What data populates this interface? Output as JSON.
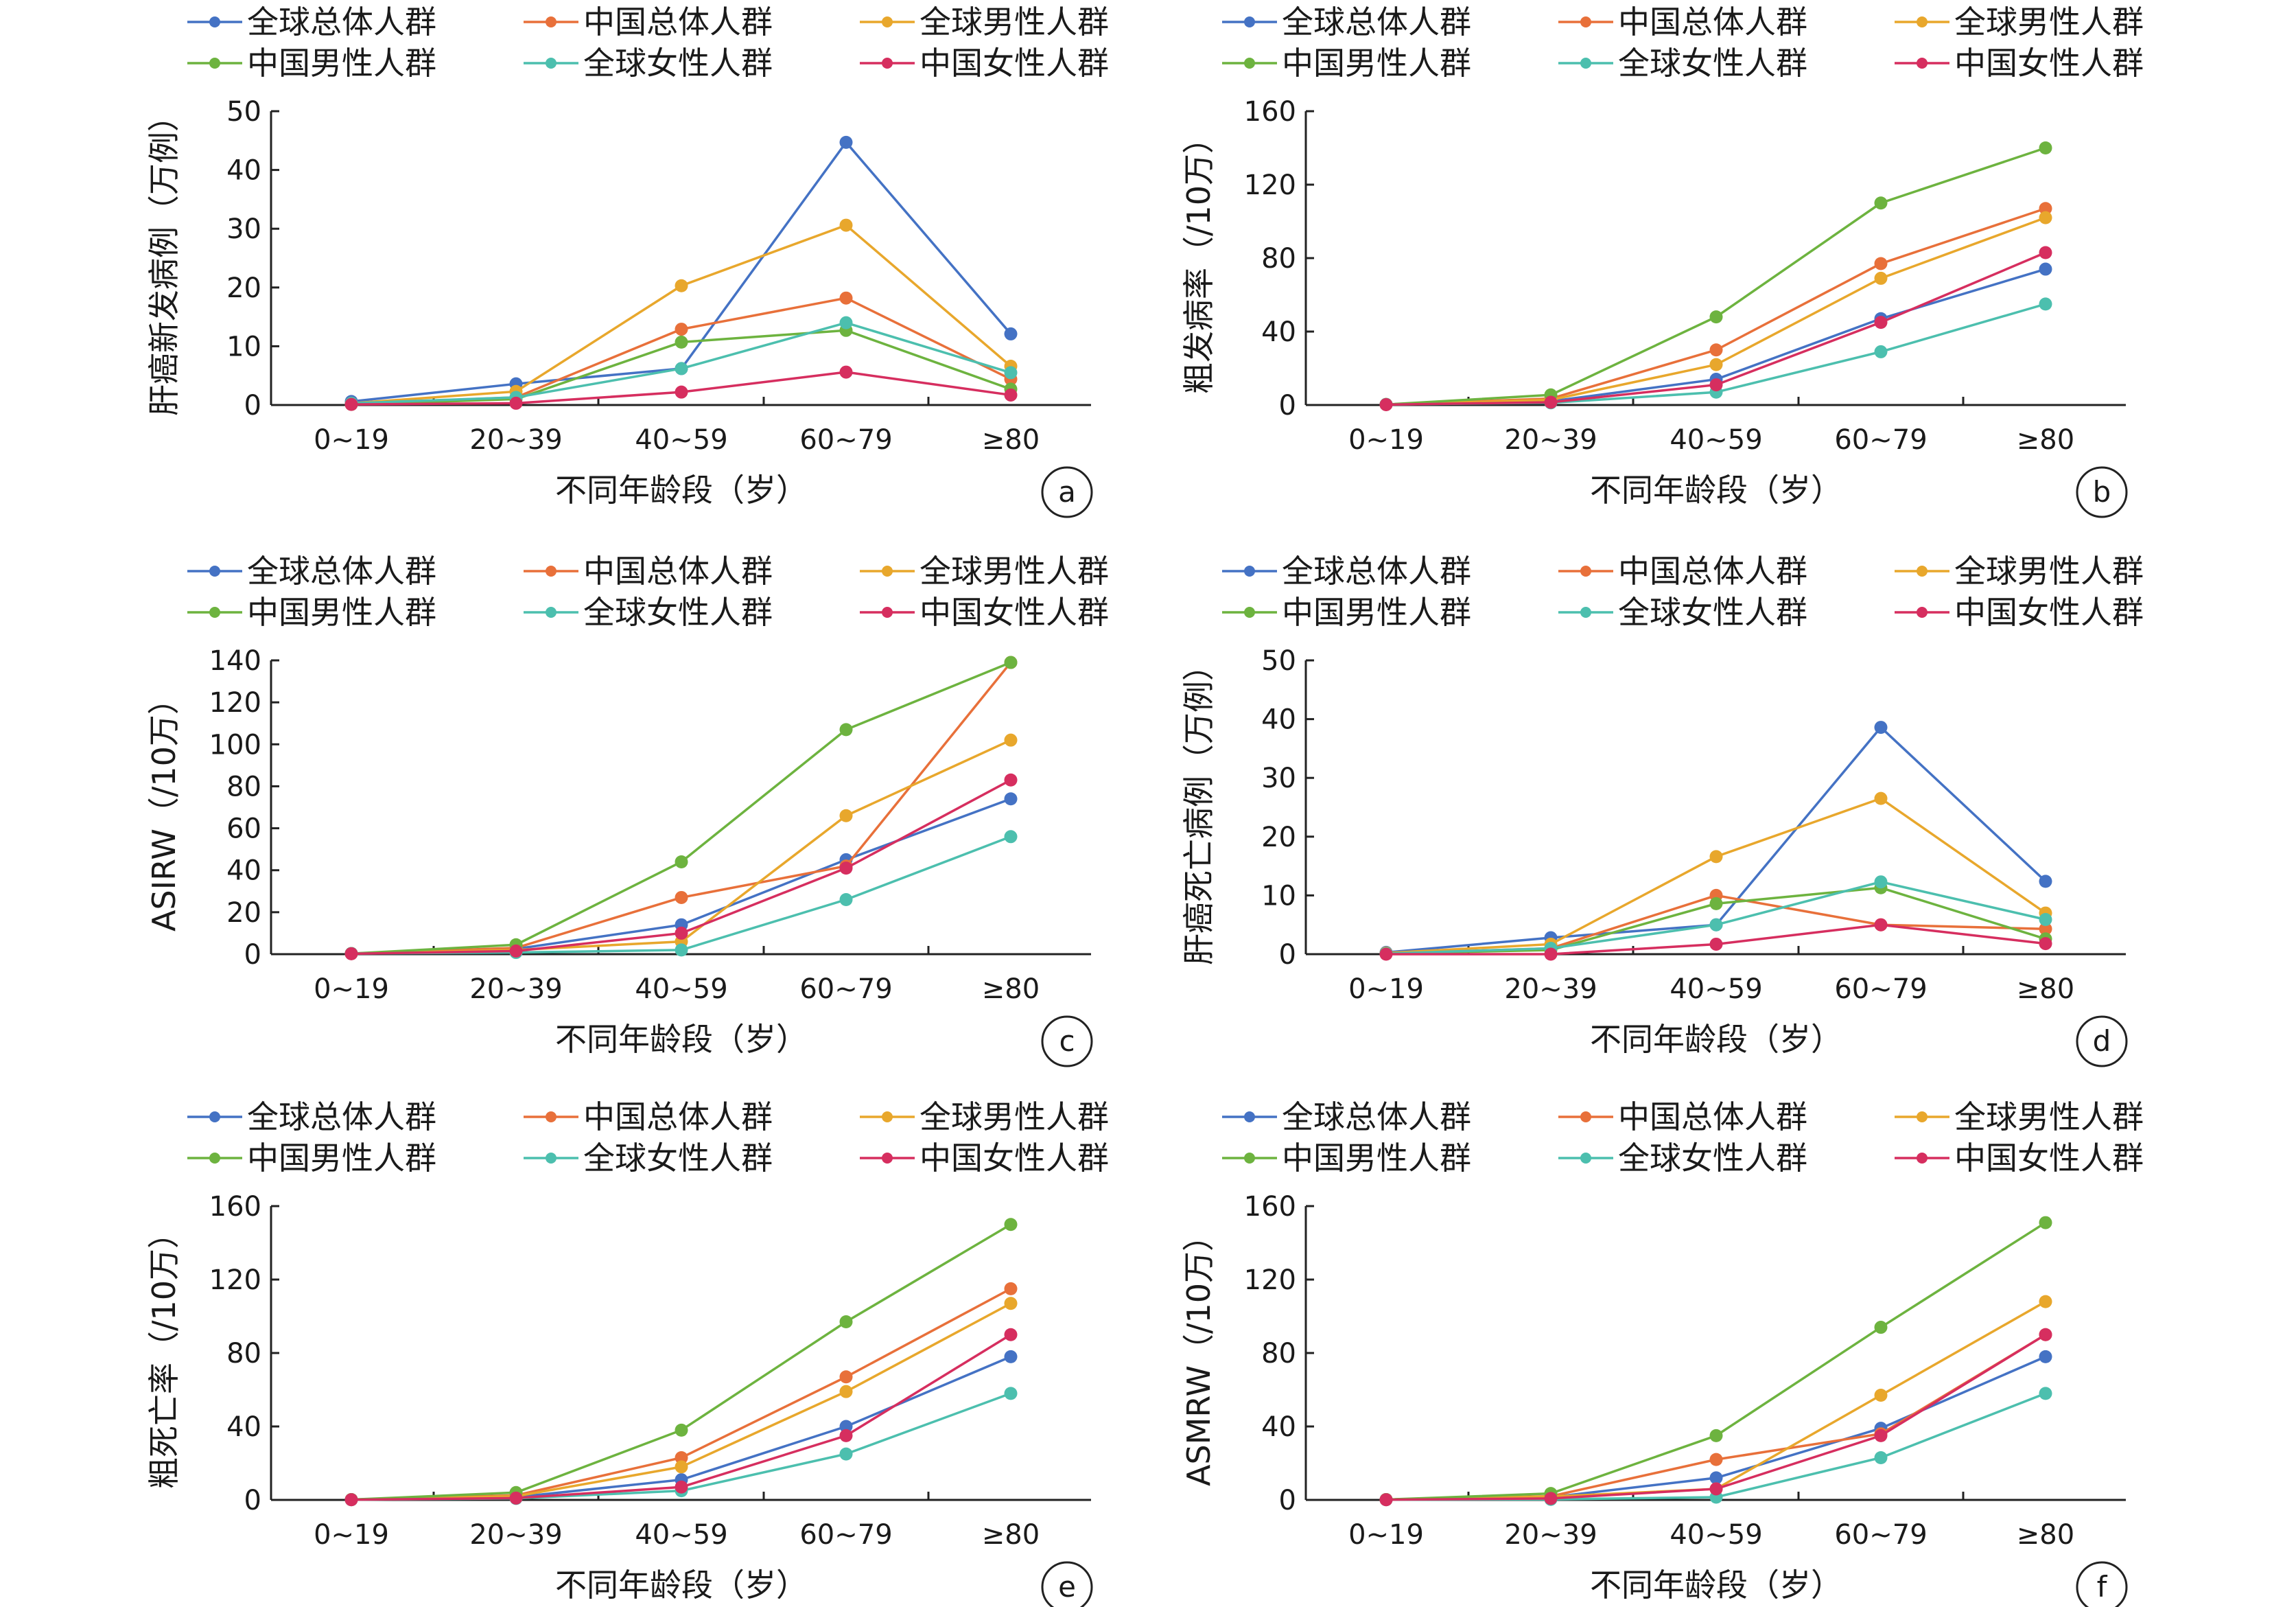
{
  "series_styles": [
    {
      "name": "全球总体人群",
      "color": "#4472C4"
    },
    {
      "name": "中国总体人群",
      "color": "#E8703A"
    },
    {
      "name": "全球男性人群",
      "color": "#E8A72C"
    },
    {
      "name": "中国男性人群",
      "color": "#6DB33F"
    },
    {
      "name": "全球女性人群",
      "color": "#4CBFAE"
    },
    {
      "name": "中国女性人群",
      "color": "#D62E5F"
    }
  ],
  "chart_data": [
    {
      "panel": "a",
      "type": "line",
      "categories": [
        "0~19",
        "20~39",
        "40~59",
        "60~79",
        "≥80"
      ],
      "xlabel": "不同年龄段（岁）",
      "ylabel": "肝癌新发病例（万例）",
      "ylim": [
        0,
        50
      ],
      "yticks": [
        0,
        10,
        20,
        30,
        40,
        50
      ],
      "series": [
        {
          "name": "全球总体人群",
          "values": [
            0.6,
            3.6,
            6.2,
            44.7,
            12.1
          ]
        },
        {
          "name": "中国总体人群",
          "values": [
            0.2,
            1.3,
            12.9,
            18.2,
            4.4
          ]
        },
        {
          "name": "全球男性人群",
          "values": [
            0.3,
            2.3,
            20.3,
            30.6,
            6.6
          ]
        },
        {
          "name": "中国男性人群",
          "values": [
            0.1,
            1.0,
            10.7,
            12.7,
            2.7
          ]
        },
        {
          "name": "全球女性人群",
          "values": [
            0.3,
            1.3,
            6.2,
            14.0,
            5.5
          ]
        },
        {
          "name": "中国女性人群",
          "values": [
            0.1,
            0.3,
            2.2,
            5.6,
            1.7
          ]
        }
      ]
    },
    {
      "panel": "b",
      "type": "line",
      "categories": [
        "0~19",
        "20~39",
        "40~59",
        "60~79",
        "≥80"
      ],
      "xlabel": "不同年龄段（岁）",
      "ylabel": "粗发病率（/10万）",
      "ylim": [
        0,
        160
      ],
      "yticks": [
        0,
        40,
        80,
        120,
        160
      ],
      "series": [
        {
          "name": "全球总体人群",
          "values": [
            0.3,
            2.0,
            14.0,
            47.0,
            74.0
          ]
        },
        {
          "name": "中国总体人群",
          "values": [
            0.3,
            3.5,
            30.0,
            77.0,
            107.0
          ]
        },
        {
          "name": "全球男性人群",
          "values": [
            0.3,
            2.8,
            22.0,
            69.0,
            102.0
          ]
        },
        {
          "name": "中国男性人群",
          "values": [
            0.3,
            5.5,
            48.0,
            110.0,
            140.0
          ]
        },
        {
          "name": "全球女性人群",
          "values": [
            0.3,
            1.2,
            7.0,
            29.0,
            55.0
          ]
        },
        {
          "name": "中国女性人群",
          "values": [
            0.2,
            1.5,
            11.0,
            45.0,
            83.0
          ]
        }
      ]
    },
    {
      "panel": "c",
      "type": "line",
      "categories": [
        "0~19",
        "20~39",
        "40~59",
        "60~79",
        "≥80"
      ],
      "xlabel": "不同年龄段（岁）",
      "ylabel": "ASIRW（/10万）",
      "ylim": [
        0,
        140
      ],
      "yticks": [
        0,
        20,
        40,
        60,
        80,
        100,
        120,
        140
      ],
      "series": [
        {
          "name": "全球总体人群",
          "values": [
            0.3,
            2.5,
            14.0,
            45.0,
            74.0
          ]
        },
        {
          "name": "中国总体人群",
          "values": [
            0.3,
            3.0,
            27.0,
            42.0,
            139.0
          ]
        },
        {
          "name": "全球男性人群",
          "values": [
            0.3,
            2.0,
            6.0,
            66.0,
            102.0
          ]
        },
        {
          "name": "中国男性人群",
          "values": [
            0.3,
            4.5,
            44.0,
            107.0,
            139.0
          ]
        },
        {
          "name": "全球女性人群",
          "values": [
            0.3,
            0.8,
            2.0,
            26.0,
            56.0
          ]
        },
        {
          "name": "中国女性人群",
          "values": [
            0.2,
            1.5,
            10.0,
            41.0,
            83.0
          ]
        }
      ]
    },
    {
      "panel": "d",
      "type": "line",
      "categories": [
        "0~19",
        "20~39",
        "40~59",
        "60~79",
        "≥80"
      ],
      "xlabel": "不同年龄段（岁）",
      "ylabel": "肝癌死亡病例（万例）",
      "ylim": [
        0,
        50
      ],
      "yticks": [
        0,
        10,
        20,
        30,
        40,
        50
      ],
      "series": [
        {
          "name": "全球总体人群",
          "values": [
            0.3,
            2.8,
            5.0,
            38.6,
            12.4
          ]
        },
        {
          "name": "中国总体人群",
          "values": [
            0.1,
            1.0,
            10.0,
            5.0,
            4.3
          ]
        },
        {
          "name": "全球男性人群",
          "values": [
            0.2,
            1.7,
            16.6,
            26.5,
            7.0
          ]
        },
        {
          "name": "中国男性人群",
          "values": [
            0.1,
            0.7,
            8.6,
            11.3,
            2.6
          ]
        },
        {
          "name": "全球女性人群",
          "values": [
            0.1,
            1.0,
            5.0,
            12.3,
            5.9
          ]
        },
        {
          "name": "中国女性人群",
          "values": [
            0.0,
            0.0,
            1.7,
            5.0,
            1.8
          ]
        }
      ]
    },
    {
      "panel": "e",
      "type": "line",
      "categories": [
        "0~19",
        "20~39",
        "40~59",
        "60~79",
        "≥80"
      ],
      "xlabel": "不同年龄段（岁）",
      "ylabel": "粗死亡率（/10万）",
      "ylim": [
        0,
        160
      ],
      "yticks": [
        0,
        40,
        80,
        120,
        160
      ],
      "series": [
        {
          "name": "全球总体人群",
          "values": [
            0.2,
            1.5,
            11.0,
            40.0,
            78.0
          ]
        },
        {
          "name": "中国总体人群",
          "values": [
            0.2,
            2.5,
            23.0,
            67.0,
            115.0
          ]
        },
        {
          "name": "全球男性人群",
          "values": [
            0.2,
            2.0,
            18.0,
            59.0,
            107.0
          ]
        },
        {
          "name": "中国男性人群",
          "values": [
            0.2,
            4.0,
            38.0,
            97.0,
            150.0
          ]
        },
        {
          "name": "全球女性人群",
          "values": [
            0.1,
            0.8,
            5.0,
            25.0,
            58.0
          ]
        },
        {
          "name": "中国女性人群",
          "values": [
            0.1,
            1.0,
            7.0,
            35.0,
            90.0
          ]
        }
      ]
    },
    {
      "panel": "f",
      "type": "line",
      "categories": [
        "0~19",
        "20~39",
        "40~59",
        "60~79",
        "≥80"
      ],
      "xlabel": "不同年龄段（岁）",
      "ylabel": "ASMRW（/10万）",
      "ylim": [
        0,
        160
      ],
      "yticks": [
        0,
        40,
        80,
        120,
        160
      ],
      "series": [
        {
          "name": "全球总体人群",
          "values": [
            0.2,
            1.5,
            12.0,
            39.0,
            78.0
          ]
        },
        {
          "name": "中国总体人群",
          "values": [
            0.2,
            2.0,
            22.0,
            36.0,
            90.0
          ]
        },
        {
          "name": "全球男性人群",
          "values": [
            0.2,
            1.8,
            6.0,
            57.0,
            108.0
          ]
        },
        {
          "name": "中国男性人群",
          "values": [
            0.2,
            3.5,
            35.0,
            94.0,
            151.0
          ]
        },
        {
          "name": "全球女性人群",
          "values": [
            0.1,
            0.3,
            1.5,
            23.0,
            58.0
          ]
        },
        {
          "name": "中国女性人群",
          "values": [
            0.1,
            0.8,
            6.0,
            35.0,
            90.0
          ]
        }
      ]
    }
  ]
}
